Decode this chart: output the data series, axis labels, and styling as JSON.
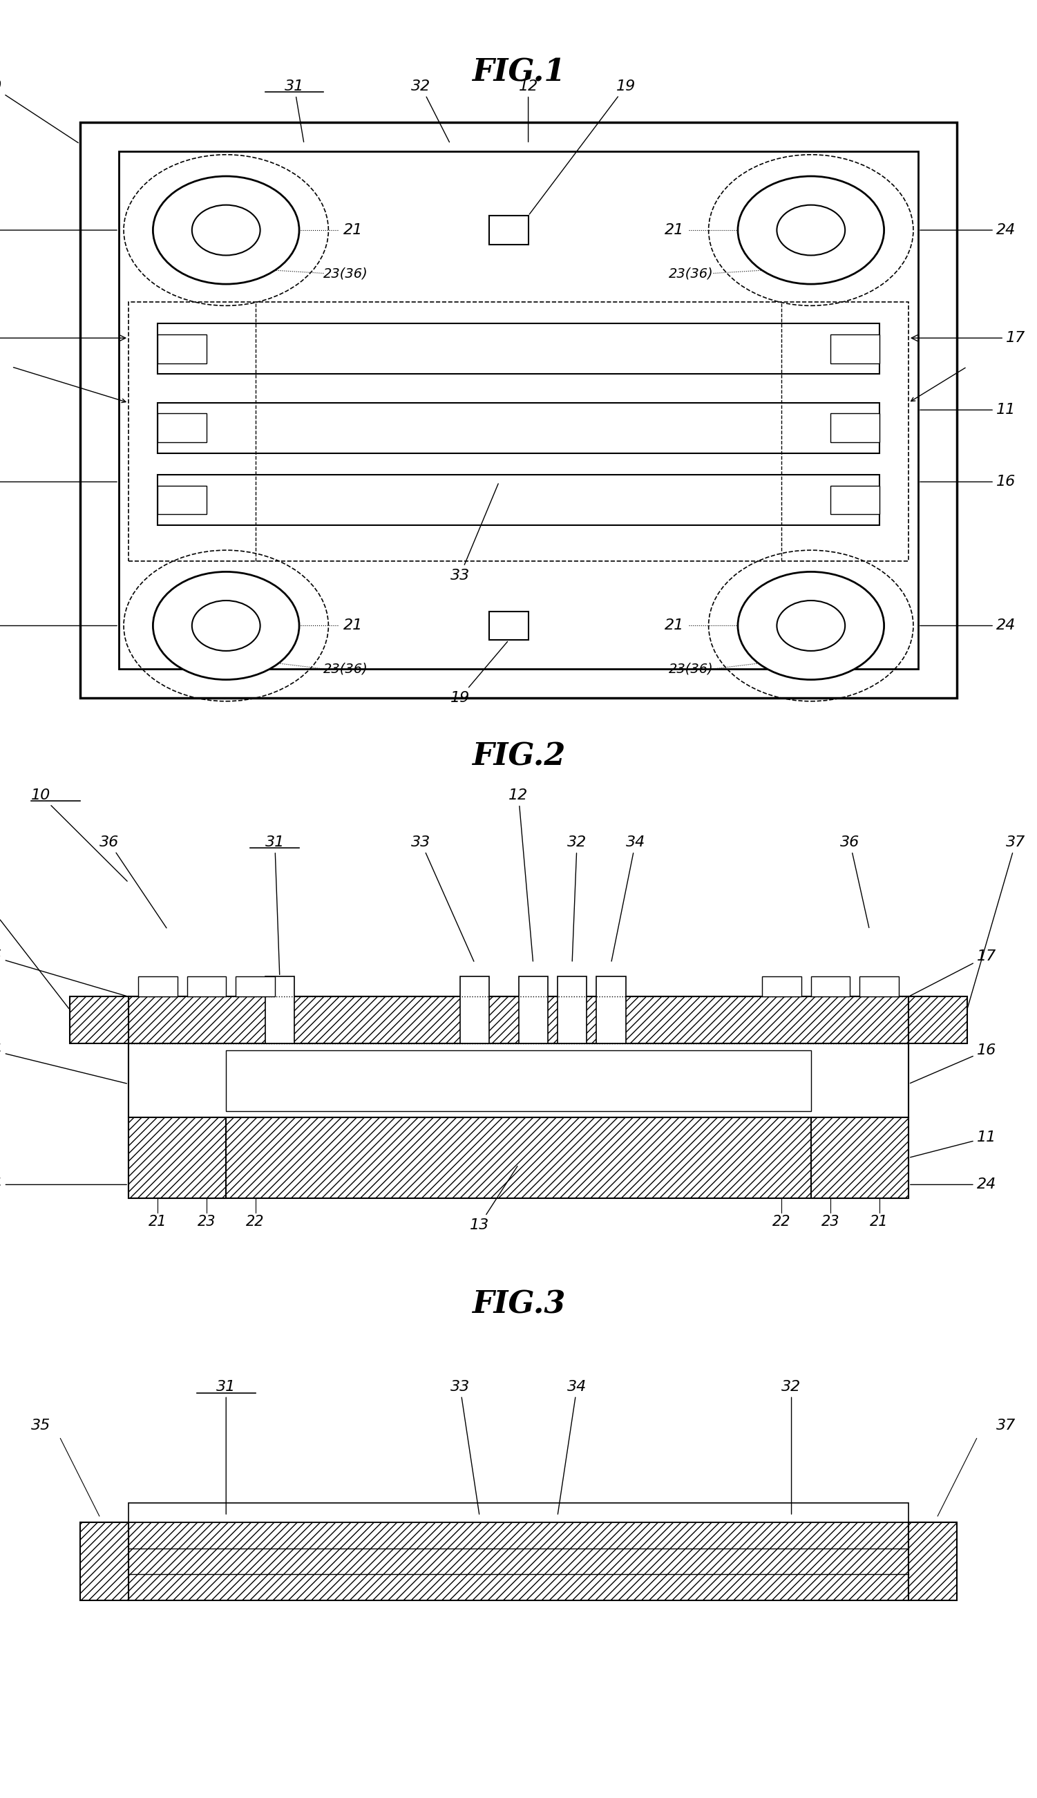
{
  "fig1_title": "FIG.1",
  "fig2_title": "FIG.2",
  "fig3_title": "FIG.3",
  "bg_color": "#ffffff",
  "line_color": "#000000",
  "title_fontsize": 32,
  "label_fontsize": 16
}
